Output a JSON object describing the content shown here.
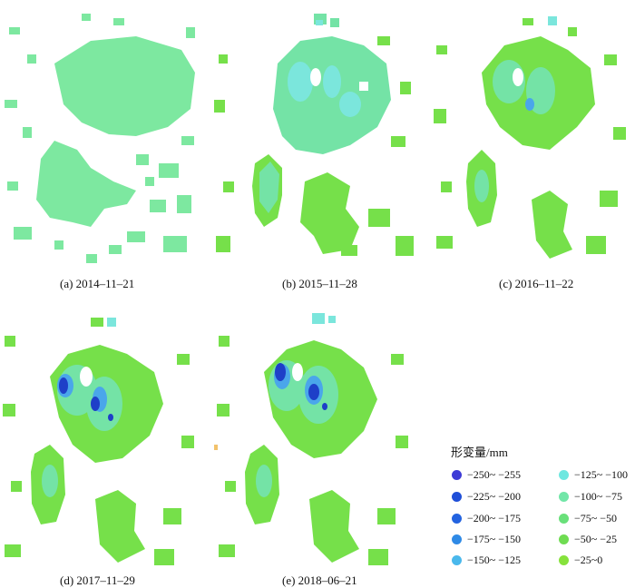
{
  "panels": [
    {
      "id": "a",
      "caption": "(a) 2014–11–21"
    },
    {
      "id": "b",
      "caption": "(b) 2015–11–28"
    },
    {
      "id": "c",
      "caption": "(c) 2016–11–22"
    },
    {
      "id": "d",
      "caption": "(d) 2017–11–29"
    },
    {
      "id": "e",
      "caption": "(e) 2018–06–21"
    }
  ],
  "legend": {
    "title": "形变量/mm",
    "items": [
      {
        "label": "−250~ −255",
        "color": "#3d3bd6"
      },
      {
        "label": "−225~ −200",
        "color": "#1f4fd8"
      },
      {
        "label": "−200~ −175",
        "color": "#2363e0"
      },
      {
        "label": "−175~ −150",
        "color": "#2f8ae6"
      },
      {
        "label": "−150~ −125",
        "color": "#4ab8ec"
      },
      {
        "label": "−125~ −100",
        "color": "#6ee7e0"
      },
      {
        "label": "−100~ −75",
        "color": "#72e6a8"
      },
      {
        "label": "−75~ −50",
        "color": "#69e07a"
      },
      {
        "label": "−50~ −25",
        "color": "#6fdc52"
      },
      {
        "label": "−25~0",
        "color": "#86e23c"
      }
    ]
  },
  "colors": {
    "panel_a_fill": "#7de8a0",
    "base_fill": "#76e04a",
    "mid_fill": "#74e3a6",
    "cyan_fill": "#7be6dc",
    "deep_blue": "#1e3fc8",
    "light_blue": "#4aa6ea"
  }
}
